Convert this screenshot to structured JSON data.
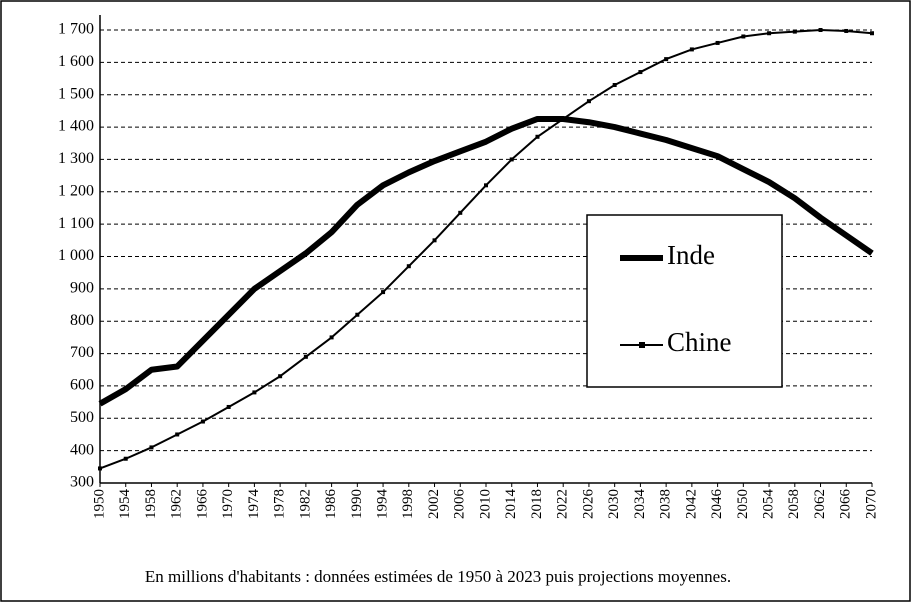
{
  "chart_data": {
    "type": "line",
    "caption": "En millions d'habitants : données estimées de 1950 à 2023 puis projections moyennes.",
    "x": [
      1950,
      1954,
      1958,
      1962,
      1966,
      1970,
      1974,
      1978,
      1982,
      1986,
      1990,
      1994,
      1998,
      2002,
      2006,
      2010,
      2014,
      2018,
      2022,
      2026,
      2030,
      2034,
      2038,
      2042,
      2046,
      2050,
      2054,
      2058,
      2062,
      2066,
      2070
    ],
    "xlim": [
      1950,
      2070
    ],
    "xticks": [
      1950,
      1954,
      1958,
      1962,
      1966,
      1970,
      1974,
      1978,
      1982,
      1986,
      1990,
      1994,
      1998,
      2002,
      2006,
      2010,
      2014,
      2018,
      2022,
      2026,
      2030,
      2034,
      2038,
      2042,
      2046,
      2050,
      2054,
      2058,
      2062,
      2066,
      2070
    ],
    "ylim": [
      300,
      1700
    ],
    "yticks": [
      300,
      400,
      500,
      600,
      700,
      800,
      900,
      {
        "value": 1000,
        "label": "1 000"
      },
      {
        "value": 1100,
        "label": "1 100"
      },
      {
        "value": 1200,
        "label": "1 200"
      },
      {
        "value": 1300,
        "label": "1 300"
      },
      {
        "value": 1400,
        "label": "1 400"
      },
      {
        "value": 1500,
        "label": "1 500"
      },
      {
        "value": 1600,
        "label": "1 600"
      },
      {
        "value": 1700,
        "label": "1 700"
      }
    ],
    "grid": true,
    "grid_style": "dashed",
    "legend_position": "right",
    "series": [
      {
        "name": "Inde",
        "color": "#000000",
        "line_width": 6,
        "marker": "none",
        "values": [
          545,
          590,
          650,
          660,
          740,
          820,
          900,
          955,
          1010,
          1075,
          1160,
          1220,
          1260,
          1295,
          1325,
          1355,
          1395,
          1425,
          1425,
          1415,
          1400,
          1380,
          1360,
          1335,
          1310,
          1270,
          1230,
          1180,
          1120,
          1065,
          1010
        ]
      },
      {
        "name": "Chine",
        "color": "#000000",
        "line_width": 2,
        "marker": "square",
        "values": [
          345,
          375,
          410,
          450,
          490,
          535,
          580,
          630,
          690,
          750,
          820,
          890,
          970,
          1050,
          1135,
          1220,
          1300,
          1370,
          1425,
          1480,
          1530,
          1570,
          1610,
          1640,
          1660,
          1680,
          1690,
          1695,
          1700,
          1697,
          1690
        ]
      }
    ]
  }
}
